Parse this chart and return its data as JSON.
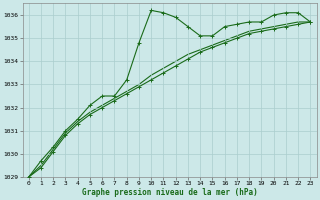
{
  "line1": [
    1029.0,
    1029.7,
    1030.3,
    1031.0,
    1031.5,
    1032.1,
    1032.5,
    1032.5,
    1033.2,
    1034.8,
    1036.2,
    1036.1,
    1035.9,
    1035.5,
    1035.1,
    1035.1,
    1035.5,
    1035.6,
    1035.7,
    1035.7,
    1036.0,
    1036.1,
    1036.1,
    1035.7
  ],
  "line2": [
    1029.0,
    1029.4,
    1030.1,
    1030.8,
    1031.3,
    1031.7,
    1032.0,
    1032.3,
    1032.6,
    1032.9,
    1033.2,
    1033.5,
    1033.8,
    1034.1,
    1034.4,
    1034.6,
    1034.8,
    1035.0,
    1035.2,
    1035.3,
    1035.4,
    1035.5,
    1035.6,
    1035.7
  ],
  "line3": [
    1029.0,
    1029.5,
    1030.2,
    1030.9,
    1031.4,
    1031.8,
    1032.1,
    1032.4,
    1032.7,
    1033.0,
    1033.4,
    1033.7,
    1034.0,
    1034.3,
    1034.5,
    1034.7,
    1034.9,
    1035.1,
    1035.3,
    1035.4,
    1035.5,
    1035.6,
    1035.7,
    1035.7
  ],
  "x": [
    0,
    1,
    2,
    3,
    4,
    5,
    6,
    7,
    8,
    9,
    10,
    11,
    12,
    13,
    14,
    15,
    16,
    17,
    18,
    19,
    20,
    21,
    22,
    23
  ],
  "ylim": [
    1029,
    1036.5
  ],
  "xlim": [
    -0.5,
    23.5
  ],
  "yticks": [
    1029,
    1030,
    1031,
    1032,
    1033,
    1034,
    1035,
    1036
  ],
  "xticks": [
    0,
    1,
    2,
    3,
    4,
    5,
    6,
    7,
    8,
    9,
    10,
    11,
    12,
    13,
    14,
    15,
    16,
    17,
    18,
    19,
    20,
    21,
    22,
    23
  ],
  "xlabel": "Graphe pression niveau de la mer (hPa)",
  "line_color": "#1a6b1a",
  "bg_color": "#cce8e8",
  "grid_color": "#aacece",
  "linewidth": 0.8,
  "markersize": 3.5,
  "tick_fontsize": 4.5,
  "xlabel_fontsize": 5.5
}
